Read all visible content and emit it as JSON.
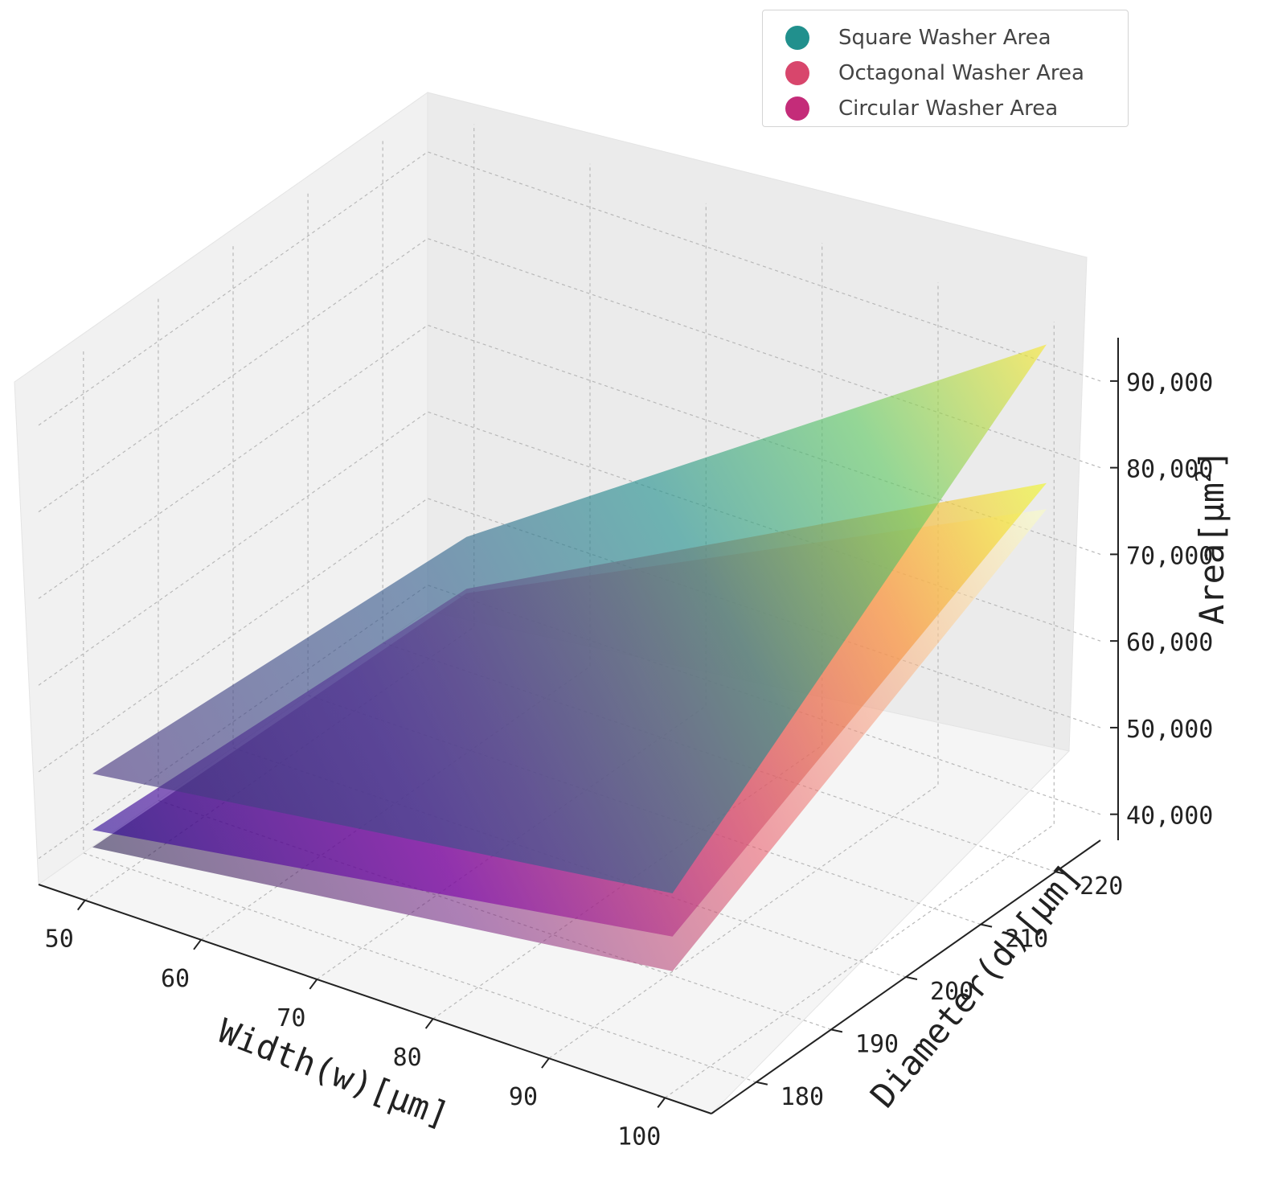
{
  "chart_data": {
    "type": "surface3d",
    "xlabel": "Width(w)[µm]",
    "ylabel": "Diameter(d)[µm]",
    "zlabel_main": "Area[µm",
    "zlabel_sup": "2",
    "zlabel_close": "]",
    "x_ticks": [
      "50",
      "60",
      "70",
      "80",
      "90",
      "100"
    ],
    "x_tick_values": [
      50,
      60,
      70,
      80,
      90,
      100
    ],
    "y_ticks": [
      "180",
      "190",
      "200",
      "210",
      "220"
    ],
    "y_tick_values": [
      180,
      190,
      200,
      210,
      220
    ],
    "z_ticks": [
      "40,000",
      "50,000",
      "60,000",
      "70,000",
      "80,000",
      "90,000"
    ],
    "z_tick_values": [
      40000,
      50000,
      60000,
      70000,
      80000,
      90000
    ],
    "xlim": [
      46,
      104
    ],
    "ylim": [
      174,
      226
    ],
    "zlim": [
      37000,
      95000
    ],
    "grid": true,
    "legend_position": "top-right",
    "series": [
      {
        "name": "Square Washer Area",
        "legend_color": "#21908d",
        "colormap": "viridis",
        "corners": [
          {
            "w": 50,
            "d": 225,
            "area": 48000
          },
          {
            "w": 100,
            "d": 225,
            "area": 93000
          },
          {
            "w": 100,
            "d": 175,
            "area": 60000
          },
          {
            "w": 50,
            "d": 175,
            "area": 51000
          }
        ]
      },
      {
        "name": "Octagonal Washer Area",
        "legend_color": "#d8466c",
        "colormap": "plasma",
        "corners": [
          {
            "w": 50,
            "d": 225,
            "area": 42000
          },
          {
            "w": 100,
            "d": 225,
            "area": 77000
          },
          {
            "w": 100,
            "d": 175,
            "area": 55000
          },
          {
            "w": 50,
            "d": 175,
            "area": 44500
          }
        ]
      },
      {
        "name": "Circular Washer Area",
        "legend_color": "#c42c79",
        "colormap": "magma",
        "corners": [
          {
            "w": 50,
            "d": 225,
            "area": 41500
          },
          {
            "w": 100,
            "d": 225,
            "area": 74000
          },
          {
            "w": 100,
            "d": 175,
            "area": 51000
          },
          {
            "w": 50,
            "d": 175,
            "area": 42500
          }
        ]
      }
    ]
  }
}
